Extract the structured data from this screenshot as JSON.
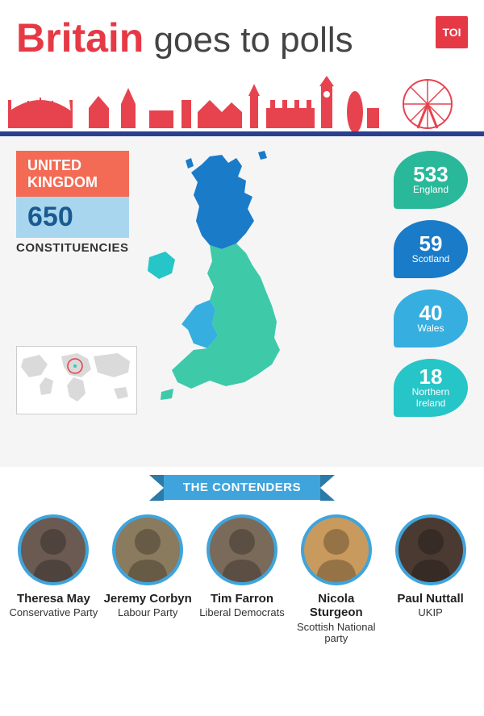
{
  "header": {
    "title_bold": "Britain",
    "title_rest": " goes to polls",
    "badge": "TOI"
  },
  "info": {
    "region_line1": "UNITED",
    "region_line2": "KINGDOM",
    "count": "650",
    "count_label": "CONSTITUENCIES"
  },
  "pills": [
    {
      "num": "533",
      "label": "England",
      "color": "#29b89a"
    },
    {
      "num": "59",
      "label": "Scotland",
      "color": "#1a7bc9"
    },
    {
      "num": "40",
      "label": "Wales",
      "color": "#36aee0"
    },
    {
      "num": "18",
      "label": "Northern\nIreland",
      "color": "#26c5c8"
    }
  ],
  "map_colors": {
    "england": "#3ec9a9",
    "scotland": "#1a7bc9",
    "wales": "#36aee0",
    "nireland": "#26c5c8"
  },
  "ribbon": "THE CONTENDERS",
  "contenders": [
    {
      "name": "Theresa May",
      "party": "Conservative Party",
      "border": "#3fa4dc",
      "bg": "#6a5a52"
    },
    {
      "name": "Jeremy Corbyn",
      "party": "Labour Party",
      "border": "#3fa4dc",
      "bg": "#8a7a5e"
    },
    {
      "name": "Tim Farron",
      "party": "Liberal Democrats",
      "border": "#3fa4dc",
      "bg": "#7a6a5a"
    },
    {
      "name": "Nicola Sturgeon",
      "party": "Scottish National party",
      "border": "#3fa4dc",
      "bg": "#c89a5e"
    },
    {
      "name": "Paul Nuttall",
      "party": "UKIP",
      "border": "#3fa4dc",
      "bg": "#4a3a32"
    }
  ],
  "colors": {
    "accent_red": "#e63946",
    "accent_blue": "#2a3f8f"
  }
}
